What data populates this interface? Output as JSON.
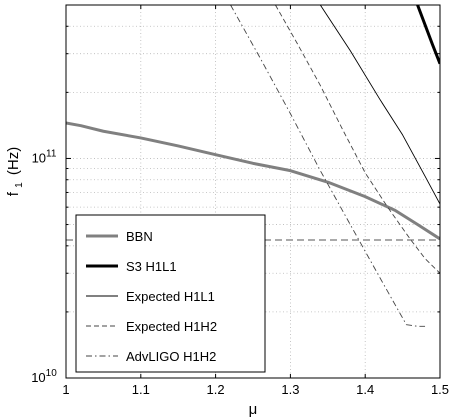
{
  "chart_data": {
    "type": "line",
    "xlabel": "μ",
    "ylabel": "f",
    "ylabel_sub": "1",
    "ylabel_unit": "(Hz)",
    "xlim": [
      1.0,
      1.5
    ],
    "ylim": [
      10000000000.0,
      500000000000.0
    ],
    "yscale": "log",
    "grid": true,
    "legend_position": "lower-left",
    "x_ticks": [
      1.0,
      1.1,
      1.2,
      1.3,
      1.4,
      1.5
    ],
    "x_tick_labels": [
      "1",
      "1.1",
      "1.2",
      "1.3",
      "1.4",
      "1.5"
    ],
    "y_ticks": [
      {
        "value": 10000000000.0,
        "base": "10",
        "exp": "10"
      },
      {
        "value": 100000000000.0,
        "base": "10",
        "exp": "11"
      }
    ],
    "series": [
      {
        "name": "BBN",
        "style": "thick-gray",
        "color": "#808080",
        "x": [
          1.0,
          1.02,
          1.05,
          1.1,
          1.15,
          1.2,
          1.25,
          1.3,
          1.35,
          1.4,
          1.44,
          1.47,
          1.5
        ],
        "y": [
          145000000000.0,
          141000000000.0,
          133000000000.0,
          124000000000.0,
          114000000000.0,
          104000000000.0,
          95000000000.0,
          88000000000.0,
          78000000000.0,
          67000000000.0,
          58000000000.0,
          50000000000.0,
          43000000000.0
        ]
      },
      {
        "name": "S3 H1L1",
        "style": "thick-black",
        "color": "#000000",
        "x": [
          1.47,
          1.49,
          1.5
        ],
        "y": [
          500000000000.0,
          330000000000.0,
          270000000000.0
        ]
      },
      {
        "name": "Expected H1L1",
        "style": "thin-solid",
        "color": "#000000",
        "x": [
          1.34,
          1.38,
          1.42,
          1.45,
          1.48,
          1.5
        ],
        "y": [
          500000000000.0,
          310000000000.0,
          185000000000.0,
          128000000000.0,
          83000000000.0,
          62000000000.0
        ]
      },
      {
        "name": "Expected H1H2",
        "style": "thin-dashed",
        "color": "#555555",
        "x": [
          1.28,
          1.31,
          1.34,
          1.37,
          1.4,
          1.43,
          1.46,
          1.48,
          1.5
        ],
        "y": [
          500000000000.0,
          330000000000.0,
          215000000000.0,
          135000000000.0,
          86000000000.0,
          60000000000.0,
          43000000000.0,
          35000000000.0,
          30000000000.0
        ]
      },
      {
        "name": "AdvLIGO H1H2",
        "style": "thin-dashdot",
        "color": "#555555",
        "x": [
          1.22,
          1.26,
          1.3,
          1.34,
          1.38,
          1.42,
          1.455,
          1.47,
          1.48
        ],
        "y": [
          500000000000.0,
          285000000000.0,
          160000000000.0,
          88000000000.0,
          50000000000.0,
          28500000000.0,
          17500000000.0,
          17200000000.0,
          17200000000.0
        ]
      }
    ],
    "reference_line": {
      "y": 42500000000.0,
      "style": "dashed",
      "color": "#aaaaaa"
    }
  }
}
